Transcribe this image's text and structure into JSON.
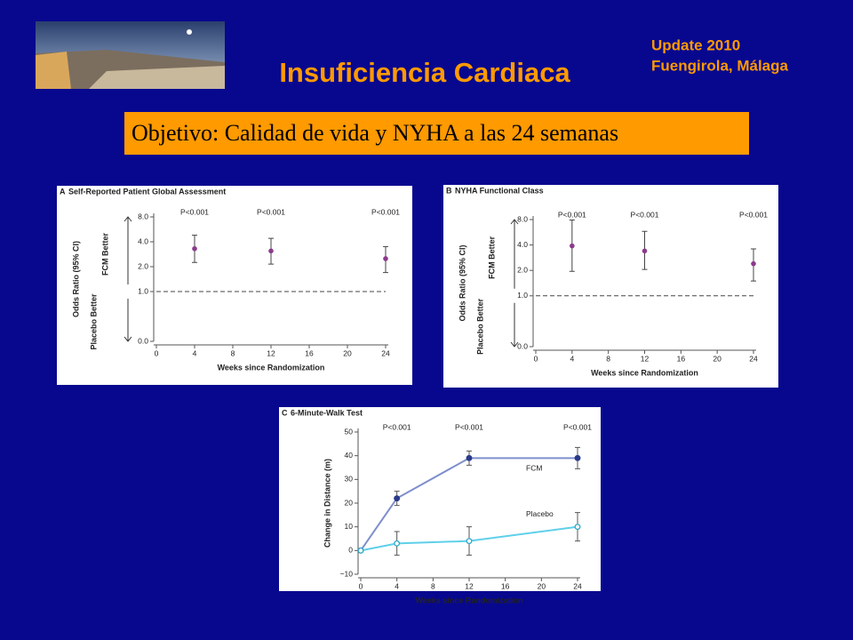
{
  "slide": {
    "title": "Insuficiencia Cardiaca",
    "update": "Update 2010",
    "location": "Fuengirola, Málaga",
    "objective": "Objetivo: Calidad de vida y NYHA a las 24 semanas"
  },
  "chart_data": [
    {
      "type": "errorpoint",
      "panel": "A",
      "title": "Self-Reported Patient Global Assessment",
      "y_label": "Odds Ratio (95% CI)",
      "y_upper_label": "FCM Better",
      "y_lower_label": "Placebo Better",
      "x_label": "Weeks since Randomization",
      "yscale": "log2-break",
      "reference_y": 1,
      "xlim": [
        0,
        24
      ],
      "xticks": [
        0,
        4,
        8,
        12,
        16,
        20,
        24
      ],
      "ylim": [
        0,
        8
      ],
      "yticks": [
        {
          "value": 0,
          "label": "0.0"
        },
        {
          "value": 1,
          "label": "1.0"
        },
        {
          "value": 2,
          "label": "2.0"
        },
        {
          "value": 4,
          "label": "4.0"
        },
        {
          "value": 8,
          "label": "8.0"
        }
      ],
      "x": [
        4,
        12,
        24
      ],
      "values": [
        3.3,
        3.1,
        2.5
      ],
      "lower": [
        2.25,
        2.15,
        1.7
      ],
      "upper": [
        4.8,
        4.4,
        3.5
      ],
      "color": "#8b3a8b",
      "annotations": [
        {
          "x": 4,
          "text": "P<0.001"
        },
        {
          "x": 12,
          "text": "P<0.001"
        },
        {
          "x": 24,
          "text": "P<0.001"
        }
      ]
    },
    {
      "type": "errorpoint",
      "panel": "B",
      "title": "NYHA Functional Class",
      "y_label": "Odds Ratio (95% CI)",
      "y_upper_label": "FCM Better",
      "y_lower_label": "Placebo Better",
      "x_label": "Weeks since Randomization",
      "yscale": "log2-break",
      "reference_y": 1,
      "xlim": [
        0,
        24
      ],
      "xticks": [
        0,
        4,
        8,
        12,
        16,
        20,
        24
      ],
      "ylim": [
        0,
        8
      ],
      "yticks": [
        {
          "value": 0,
          "label": "0.0"
        },
        {
          "value": 1,
          "label": "1.0"
        },
        {
          "value": 2,
          "label": "2.0"
        },
        {
          "value": 4,
          "label": "4.0"
        },
        {
          "value": 8,
          "label": "8.0"
        }
      ],
      "x": [
        4,
        12,
        24
      ],
      "values": [
        3.9,
        3.4,
        2.4
      ],
      "lower": [
        1.95,
        2.05,
        1.5
      ],
      "upper": [
        7.9,
        5.8,
        3.6
      ],
      "color": "#8b3a8b",
      "annotations": [
        {
          "x": 4,
          "text": "P<0.001"
        },
        {
          "x": 12,
          "text": "P<0.001"
        },
        {
          "x": 24,
          "text": "P<0.001"
        }
      ]
    },
    {
      "type": "line",
      "panel": "C",
      "title": "6-Minute-Walk Test",
      "y_label": "Change in Distance (m)",
      "x_label": "Weeks since Randomization",
      "xlim": [
        0,
        24
      ],
      "xticks": [
        0,
        4,
        8,
        12,
        16,
        20,
        24
      ],
      "ylim": [
        -10,
        50
      ],
      "yticks": [
        {
          "value": -10,
          "label": "−10"
        },
        0,
        10,
        20,
        30,
        40,
        50
      ],
      "x": [
        0,
        4,
        12,
        24
      ],
      "series": [
        {
          "name": "FCM",
          "color": "#7f8fcc",
          "marker": "#2a3a8a",
          "values": [
            0,
            22,
            39,
            39
          ],
          "errors": [
            0,
            3,
            3,
            4.5
          ]
        },
        {
          "name": "Placebo",
          "color": "#5fd0ea",
          "marker": "#30a8c8",
          "values": [
            0,
            3,
            4,
            10
          ],
          "errors": [
            0,
            5,
            6,
            6
          ]
        }
      ],
      "annotations": [
        {
          "x": 4,
          "text": "P<0.001"
        },
        {
          "x": 12,
          "text": "P<0.001"
        },
        {
          "x": 24,
          "text": "P<0.001"
        }
      ]
    }
  ]
}
